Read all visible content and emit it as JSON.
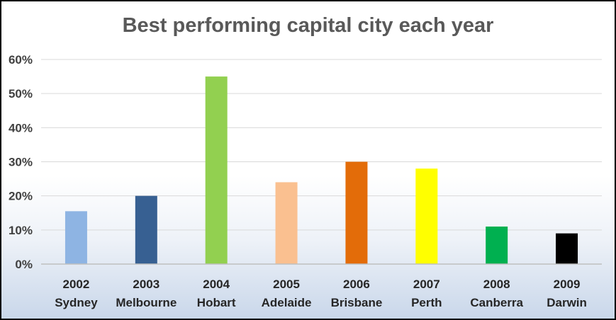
{
  "chart_data": {
    "type": "bar",
    "title": "Best performing capital city each year",
    "xlabel": "",
    "ylabel": "",
    "ylim": [
      0,
      60
    ],
    "ytick_labels": [
      "0%",
      "10%",
      "20%",
      "30%",
      "40%",
      "50%",
      "60%"
    ],
    "grid": true,
    "legend": "none",
    "categories": [
      {
        "year": "2002",
        "city": "Sydney"
      },
      {
        "year": "2003",
        "city": "Melbourne"
      },
      {
        "year": "2004",
        "city": "Hobart"
      },
      {
        "year": "2005",
        "city": "Adelaide"
      },
      {
        "year": "2006",
        "city": "Brisbane"
      },
      {
        "year": "2007",
        "city": "Perth"
      },
      {
        "year": "2008",
        "city": "Canberra"
      },
      {
        "year": "2009",
        "city": "Darwin"
      }
    ],
    "values": [
      15.5,
      20,
      55,
      24,
      30,
      28,
      11,
      9
    ],
    "colors": [
      "#8eb4e3",
      "#376092",
      "#92d050",
      "#fac090",
      "#e36c09",
      "#ffff00",
      "#00b050",
      "#000000"
    ]
  }
}
